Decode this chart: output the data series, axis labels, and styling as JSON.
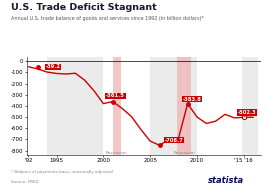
{
  "title": "U.S. Trade Deficit Stagnant",
  "subtitle": "Annual U.S. trade balance of goods and services since 1992 (in billion dollars)*",
  "years": [
    1992,
    1993,
    1994,
    1995,
    1996,
    1997,
    1998,
    1999,
    2000,
    2001,
    2002,
    2003,
    2004,
    2005,
    2006,
    2007,
    2008,
    2009,
    2010,
    2011,
    2012,
    2013,
    2014,
    2015,
    2016
  ],
  "values": [
    -50,
    -70,
    -98,
    -110,
    -115,
    -108,
    -170,
    -265,
    -380,
    -361.5,
    -423,
    -496,
    -611,
    -716,
    -753,
    -700,
    -698,
    -380,
    -500,
    -558,
    -537,
    -476,
    -508,
    -502.3,
    -502.3
  ],
  "recession_bands": [
    {
      "x_start": 2001.0,
      "x_end": 2001.9,
      "color": "#f0b0b0",
      "alpha": 0.7
    },
    {
      "x_start": 2007.9,
      "x_end": 2009.4,
      "color": "#f0b0b0",
      "alpha": 0.7
    }
  ],
  "gray_bands": [
    {
      "x_start": 1994.0,
      "x_end": 2000.0,
      "color": "#d8d8d8",
      "alpha": 0.5
    },
    {
      "x_start": 2005.0,
      "x_end": 2010.0,
      "color": "#d8d8d8",
      "alpha": 0.5
    },
    {
      "x_start": 2014.8,
      "x_end": 2016.5,
      "color": "#d8d8d8",
      "alpha": 0.5
    }
  ],
  "line_color": "#cc0000",
  "label_bg_color": "#cc0000",
  "ylabel_ticks": [
    0,
    -100,
    -200,
    -300,
    -400,
    -500,
    -600,
    -700,
    -800
  ],
  "xlim": [
    1991.8,
    2016.8
  ],
  "ylim": [
    -840,
    40
  ],
  "xtick_labels": [
    "'92",
    "1995",
    "2000",
    "2005",
    "2010",
    "'15 '16"
  ],
  "xtick_positions": [
    1992,
    1995,
    2000,
    2005,
    2010,
    2015
  ],
  "footnote": "* Balance of payments basis, seasonally adjusted",
  "source": "Source: FRED",
  "statista_color": "#0a0a5a"
}
